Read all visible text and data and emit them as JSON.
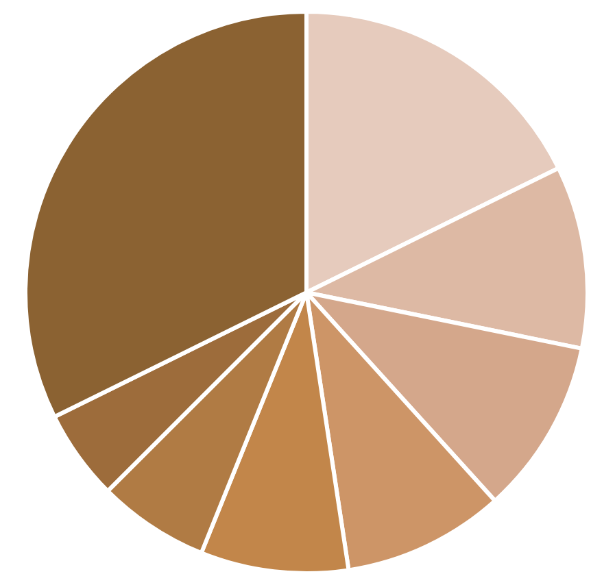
{
  "chart_data": {
    "type": "pie",
    "categories": [
      null,
      null,
      null,
      null,
      null,
      null,
      null,
      null
    ],
    "values": [
      17.7,
      10.5,
      10.1,
      9.3,
      8.5,
      6.4,
      5.2,
      32.3
    ],
    "colors": [
      "#e6cbbd",
      "#ddb9a4",
      "#d4a78b",
      "#cd9567",
      "#c2864a",
      "#b07b44",
      "#9d6c3b",
      "#8b6232"
    ]
  }
}
